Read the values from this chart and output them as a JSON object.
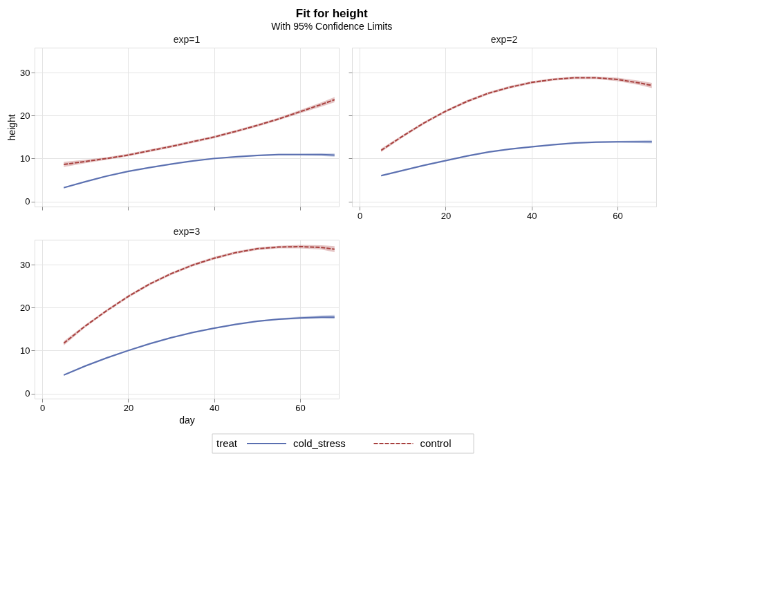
{
  "chart_data": [
    {
      "type": "line",
      "title": "Fit for height",
      "subtitle": "With 95% Confidence Limits",
      "annotations": [
        "exp=1"
      ],
      "ylabel": "height",
      "legend": "bottom",
      "legend_title": "treat",
      "grid": true,
      "tick_labels": "y",
      "xlim": [
        -1.8,
        69
      ],
      "xticks": [
        0,
        20,
        40,
        60
      ],
      "ylim": [
        -1.2,
        35.8
      ],
      "yticks": [
        0,
        10,
        20,
        30
      ],
      "x": [
        5,
        10,
        15,
        20,
        25,
        30,
        35,
        40,
        45,
        50,
        55,
        60,
        65,
        68
      ],
      "series": [
        {
          "name": "cold_stress",
          "color": "#5a6fb0",
          "line_style": "solid",
          "values": [
            3.2,
            4.6,
            5.9,
            7.0,
            7.9,
            8.7,
            9.4,
            10.0,
            10.4,
            10.7,
            10.9,
            10.9,
            10.9,
            10.8
          ],
          "lower": [
            3.0,
            4.4,
            5.7,
            6.8,
            7.7,
            8.5,
            9.2,
            9.8,
            10.2,
            10.5,
            10.7,
            10.7,
            10.6,
            10.4
          ],
          "upper": [
            3.4,
            4.8,
            6.1,
            7.2,
            8.1,
            8.9,
            9.6,
            10.2,
            10.6,
            10.9,
            11.1,
            11.1,
            11.2,
            11.2
          ]
        },
        {
          "name": "control",
          "color": "#a8403e",
          "line_style": "dashed",
          "values": [
            8.6,
            9.3,
            10.0,
            10.8,
            11.8,
            12.8,
            13.9,
            15.0,
            16.3,
            17.7,
            19.2,
            20.9,
            22.6,
            23.7
          ],
          "lower": [
            8.0,
            8.9,
            9.7,
            10.5,
            11.5,
            12.5,
            13.6,
            14.7,
            16.0,
            17.4,
            18.9,
            20.5,
            22.1,
            23.1
          ],
          "upper": [
            9.2,
            9.7,
            10.3,
            11.1,
            12.1,
            13.1,
            14.2,
            15.3,
            16.6,
            18.0,
            19.5,
            21.3,
            23.1,
            24.3
          ]
        }
      ]
    },
    {
      "type": "line",
      "title": "exp=2",
      "grid": true,
      "tick_labels": "x",
      "xlim": [
        -1.8,
        69
      ],
      "xticks": [
        0,
        20,
        40,
        60
      ],
      "ylim": [
        -1.2,
        35.8
      ],
      "yticks": [
        0,
        10,
        20,
        30
      ],
      "x": [
        5,
        10,
        15,
        20,
        25,
        30,
        35,
        40,
        45,
        50,
        55,
        60,
        65,
        68
      ],
      "series": [
        {
          "color": "#5a6fb0",
          "line_style": "solid",
          "values": [
            6.0,
            7.2,
            8.4,
            9.5,
            10.6,
            11.5,
            12.2,
            12.7,
            13.2,
            13.6,
            13.8,
            13.9,
            13.9,
            13.9
          ],
          "lower": [
            5.8,
            7.0,
            8.2,
            9.3,
            10.4,
            11.3,
            12.0,
            12.5,
            13.0,
            13.4,
            13.6,
            13.7,
            13.6,
            13.5
          ],
          "upper": [
            6.2,
            7.4,
            8.6,
            9.7,
            10.8,
            11.7,
            12.4,
            12.9,
            13.4,
            13.8,
            14.0,
            14.1,
            14.2,
            14.3
          ]
        },
        {
          "color": "#a8403e",
          "line_style": "dashed",
          "values": [
            11.9,
            15.2,
            18.3,
            21.0,
            23.3,
            25.2,
            26.6,
            27.7,
            28.4,
            28.8,
            28.8,
            28.4,
            27.6,
            27.0
          ],
          "lower": [
            11.5,
            14.9,
            18.0,
            20.7,
            23.0,
            24.9,
            26.3,
            27.4,
            28.1,
            28.5,
            28.5,
            28.0,
            27.1,
            26.4
          ],
          "upper": [
            12.3,
            15.5,
            18.6,
            21.3,
            23.6,
            25.5,
            26.9,
            28.0,
            28.7,
            29.1,
            29.1,
            28.8,
            28.1,
            27.6
          ]
        }
      ]
    },
    {
      "type": "line",
      "title": "exp=3",
      "xlabel": "day",
      "grid": true,
      "xlim": [
        -1.8,
        69
      ],
      "xticks": [
        0,
        20,
        40,
        60
      ],
      "ylim": [
        -1.2,
        35.8
      ],
      "yticks": [
        0,
        10,
        20,
        30
      ],
      "x": [
        5,
        10,
        15,
        20,
        25,
        30,
        35,
        40,
        45,
        50,
        55,
        60,
        65,
        68
      ],
      "series": [
        {
          "color": "#5a6fb0",
          "line_style": "solid",
          "values": [
            4.3,
            6.4,
            8.3,
            10.0,
            11.6,
            13.0,
            14.2,
            15.2,
            16.1,
            16.8,
            17.3,
            17.6,
            17.8,
            17.8
          ],
          "lower": [
            4.1,
            6.2,
            8.1,
            9.8,
            11.4,
            12.8,
            14.0,
            15.0,
            15.9,
            16.6,
            17.1,
            17.3,
            17.4,
            17.3
          ],
          "upper": [
            4.5,
            6.6,
            8.5,
            10.2,
            11.8,
            13.2,
            14.4,
            15.4,
            16.3,
            17.0,
            17.5,
            17.9,
            18.2,
            18.3
          ]
        },
        {
          "color": "#a8403e",
          "line_style": "dashed",
          "values": [
            11.7,
            15.7,
            19.3,
            22.6,
            25.5,
            27.9,
            29.9,
            31.5,
            32.8,
            33.7,
            34.1,
            34.2,
            34.0,
            33.6
          ],
          "lower": [
            11.2,
            15.4,
            19.0,
            22.3,
            25.2,
            27.6,
            29.6,
            31.2,
            32.5,
            33.4,
            33.8,
            33.8,
            33.5,
            32.9
          ],
          "upper": [
            12.2,
            16.0,
            19.6,
            22.9,
            25.8,
            28.2,
            30.2,
            31.8,
            33.1,
            34.0,
            34.4,
            34.6,
            34.5,
            34.3
          ]
        }
      ]
    }
  ]
}
